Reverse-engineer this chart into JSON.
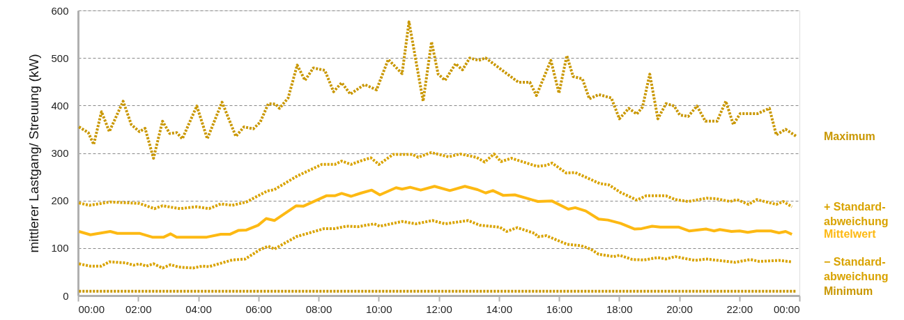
{
  "chart_data": {
    "type": "line",
    "ylabel": "mittlerer Lastgang/ Streuung (kW)",
    "xlim": [
      0,
      24
    ],
    "xticks": [
      {
        "value": 0,
        "label": "00:00"
      },
      {
        "value": 2,
        "label": "02:00"
      },
      {
        "value": 4,
        "label": "04:00"
      },
      {
        "value": 6,
        "label": "06:00"
      },
      {
        "value": 8,
        "label": "08:00"
      },
      {
        "value": 10,
        "label": "10:00"
      },
      {
        "value": 12,
        "label": "12:00"
      },
      {
        "value": 14,
        "label": "14:00"
      },
      {
        "value": 16,
        "label": "16:00"
      },
      {
        "value": 18,
        "label": "18:00"
      },
      {
        "value": 20,
        "label": "20:00"
      },
      {
        "value": 22,
        "label": "22:00"
      },
      {
        "value": 24,
        "label": "00:00"
      }
    ],
    "ylim": [
      0,
      600
    ],
    "yticks": [
      0,
      100,
      200,
      300,
      400,
      500,
      600
    ],
    "grid": "y",
    "marker": "none",
    "series": [
      {
        "name": "Maximum",
        "color": "#c99700",
        "line_style": "dotted",
        "x": [
          0.03,
          0.34,
          0.52,
          0.78,
          1.04,
          1.5,
          1.77,
          2.04,
          2.23,
          2.51,
          2.81,
          3.05,
          3.28,
          3.47,
          3.95,
          4.3,
          4.79,
          5.25,
          5.52,
          5.83,
          6.06,
          6.33,
          6.57,
          6.7,
          6.99,
          7.29,
          7.55,
          7.83,
          8.21,
          8.5,
          8.77,
          9.06,
          9.43,
          9.54,
          9.93,
          10.32,
          10.78,
          11.01,
          11.48,
          11.76,
          11.98,
          12.21,
          12.56,
          12.79,
          13.03,
          13.33,
          13.56,
          14.65,
          15.03,
          15.25,
          15.73,
          16.0,
          16.26,
          16.47,
          16.78,
          17.01,
          17.32,
          17.74,
          18.01,
          18.32,
          18.59,
          18.78,
          19.02,
          19.29,
          19.56,
          19.83,
          20.02,
          20.3,
          20.59,
          20.87,
          21.26,
          21.55,
          21.8,
          22.03,
          22.61,
          23.0,
          23.23,
          23.54,
          23.9
        ],
        "values": [
          355,
          343,
          318,
          387,
          345,
          409,
          360,
          345,
          352,
          289,
          367,
          341,
          343,
          330,
          399,
          330,
          407,
          335,
          355,
          351,
          365,
          404,
          403,
          394,
          416,
          485,
          453,
          479,
          474,
          429,
          448,
          424,
          440,
          444,
          433,
          497,
          467,
          576,
          409,
          534,
          466,
          453,
          488,
          475,
          500,
          495,
          500,
          449,
          449,
          421,
          495,
          426,
          505,
          461,
          456,
          414,
          423,
          416,
          372,
          394,
          382,
          397,
          466,
          372,
          404,
          399,
          380,
          377,
          399,
          367,
          367,
          409,
          360,
          383,
          383,
          394,
          338,
          350,
          335
        ]
      },
      {
        "name": "+ Standard-abweichung",
        "color": "#d9a300",
        "line_style": "dotted",
        "x": [
          0.03,
          0.38,
          1.07,
          2.04,
          2.54,
          2.81,
          3.39,
          3.94,
          4.36,
          4.75,
          5.13,
          5.6,
          6.29,
          6.53,
          7.3,
          8.11,
          8.54,
          8.77,
          9.08,
          9.43,
          9.74,
          10.01,
          10.48,
          11.13,
          11.32,
          11.75,
          12.33,
          12.71,
          13.25,
          13.53,
          13.84,
          14.07,
          14.42,
          15.27,
          15.58,
          15.77,
          16.24,
          16.54,
          17.0,
          17.35,
          17.66,
          18.05,
          18.59,
          18.9,
          19.56,
          19.87,
          20.3,
          20.91,
          21.22,
          21.69,
          21.92,
          22.31,
          22.58,
          23.23,
          23.46,
          23.75
        ],
        "values": [
          195,
          190,
          197,
          194,
          183,
          189,
          183,
          187,
          183,
          193,
          190,
          197,
          220,
          223,
          252,
          276,
          276,
          283,
          276,
          284,
          290,
          276,
          297,
          297,
          291,
          301,
          292,
          298,
          291,
          281,
          298,
          282,
          289,
          272,
          274,
          279,
          258,
          259,
          246,
          236,
          233,
          217,
          201,
          210,
          210,
          202,
          198,
          205,
          204,
          198,
          202,
          192,
          202,
          192,
          198,
          187
        ]
      },
      {
        "name": "Mittelwert",
        "color": "#fdb913",
        "line_style": "solid",
        "x": [
          0.03,
          0.41,
          1.07,
          1.31,
          2.04,
          2.47,
          2.85,
          3.08,
          3.28,
          4.28,
          4.75,
          5.05,
          5.33,
          5.6,
          5.99,
          6.26,
          6.53,
          7.26,
          7.49,
          8.26,
          8.54,
          8.77,
          9.08,
          9.43,
          9.77,
          10.04,
          10.58,
          10.78,
          11.05,
          11.4,
          11.86,
          12.37,
          12.87,
          13.29,
          13.56,
          13.8,
          14.14,
          14.53,
          15.3,
          15.77,
          16.31,
          16.54,
          16.89,
          17.32,
          17.63,
          18.05,
          18.52,
          18.75,
          19.1,
          19.37,
          19.99,
          20.34,
          20.89,
          21.16,
          21.35,
          21.74,
          22.01,
          22.28,
          22.58,
          23.05,
          23.32,
          23.54,
          23.75
        ],
        "values": [
          135,
          128,
          135,
          131,
          131,
          123,
          123,
          130,
          123,
          123,
          129,
          129,
          137,
          138,
          148,
          162,
          158,
          189,
          188,
          210,
          210,
          215,
          209,
          216,
          222,
          212,
          227,
          224,
          228,
          222,
          230,
          221,
          230,
          223,
          216,
          221,
          211,
          212,
          198,
          199,
          182,
          185,
          178,
          161,
          159,
          152,
          140,
          141,
          146,
          144,
          144,
          136,
          140,
          136,
          139,
          135,
          136,
          133,
          136,
          136,
          132,
          135,
          129
        ]
      },
      {
        "name": "− Standard-abweichung",
        "color": "#d9a300",
        "line_style": "dotted",
        "x": [
          0.03,
          0.41,
          0.77,
          1.04,
          1.58,
          1.85,
          2.04,
          2.27,
          2.51,
          2.81,
          3.08,
          3.35,
          3.82,
          4.13,
          4.36,
          5.13,
          5.56,
          6.06,
          6.33,
          6.53,
          7.26,
          8.19,
          8.54,
          8.93,
          9.31,
          9.85,
          10.04,
          10.78,
          11.24,
          11.79,
          12.21,
          12.98,
          13.37,
          14.03,
          14.26,
          14.61,
          15.19,
          15.3,
          15.58,
          16.27,
          16.73,
          17.05,
          17.32,
          17.82,
          18.01,
          18.44,
          18.82,
          19.29,
          19.56,
          19.87,
          20.53,
          20.89,
          21.86,
          22.37,
          22.65,
          23.32,
          23.75
        ],
        "values": [
          67,
          62,
          62,
          71,
          69,
          64,
          67,
          62,
          67,
          58,
          65,
          60,
          58,
          62,
          61,
          75,
          77,
          97,
          104,
          98,
          124,
          141,
          141,
          146,
          145,
          151,
          146,
          156,
          151,
          158,
          151,
          158,
          148,
          144,
          135,
          143,
          131,
          124,
          126,
          108,
          105,
          98,
          87,
          82,
          85,
          76,
          75,
          80,
          77,
          82,
          74,
          77,
          70,
          76,
          72,
          74,
          71
        ]
      },
      {
        "name": "Minimum",
        "color": "#c99700",
        "line_style": "dotted",
        "x": [
          0.03,
          6,
          12,
          18,
          23.9
        ],
        "values": [
          9,
          9,
          9,
          9,
          9
        ]
      }
    ]
  }
}
